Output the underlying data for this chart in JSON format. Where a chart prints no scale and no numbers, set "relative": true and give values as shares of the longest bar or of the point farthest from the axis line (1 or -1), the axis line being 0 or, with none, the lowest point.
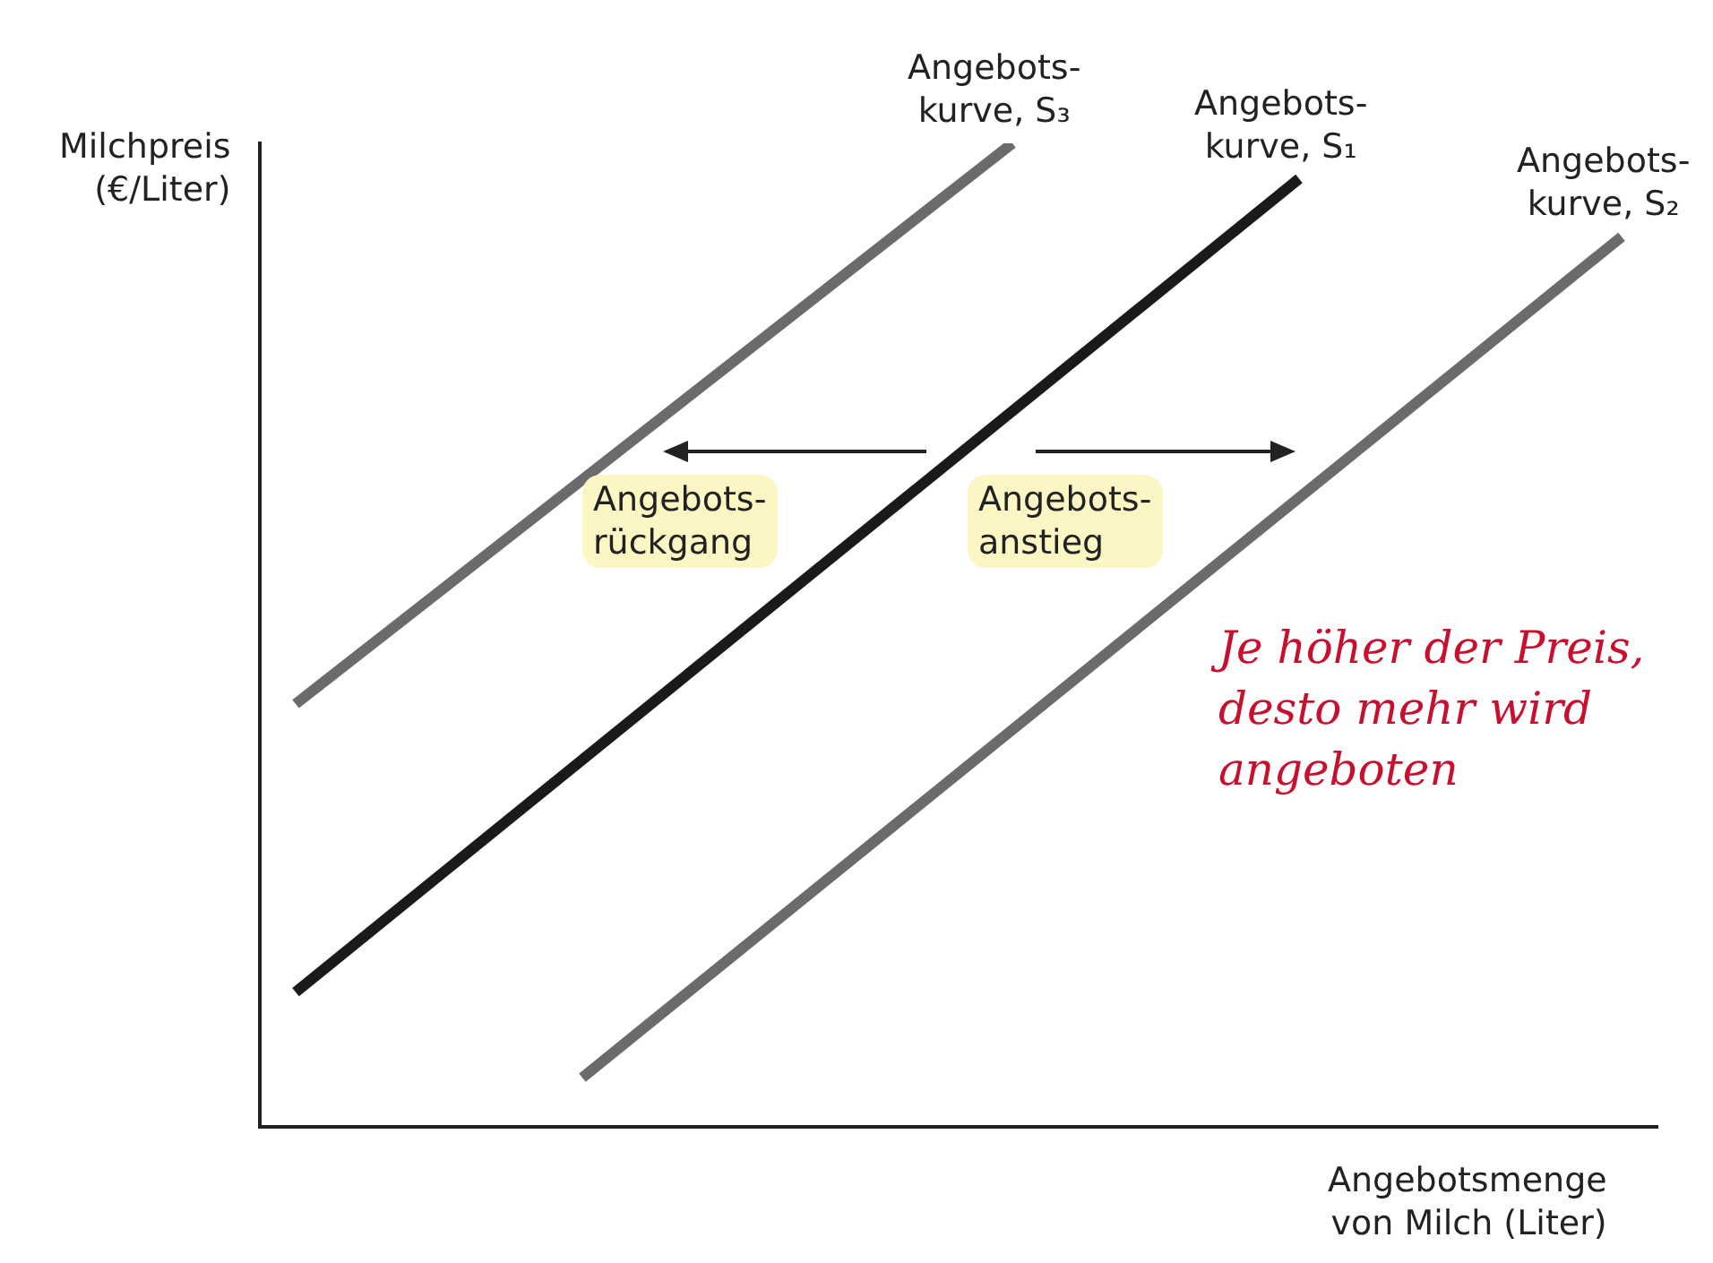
{
  "chart_data": {
    "type": "line",
    "relative": true,
    "ylabel": "Milchpreis\n(€/Liter)",
    "xlabel": "Angebotsmenge\nvon Milch (Liter)",
    "categories": [
      null,
      null,
      null,
      null,
      null,
      null,
      null,
      null,
      null,
      null,
      null,
      null,
      null,
      null,
      null,
      null,
      null,
      null,
      null,
      null,
      null,
      null,
      null,
      null,
      null,
      null,
      null,
      null,
      null,
      null,
      null,
      null,
      null,
      null,
      null,
      null,
      null,
      null,
      null,
      null
    ],
    "series": [
      {
        "name": "Angebots-\nkurve, S₃",
        "color": "#6b6b6b",
        "values": [
          null,
          0.43,
          null,
          null,
          null,
          null,
          null,
          null,
          null,
          null,
          null,
          null,
          null,
          null,
          null,
          null,
          null,
          null,
          null,
          null,
          null,
          1,
          null,
          null,
          null,
          null,
          null,
          null,
          null,
          null,
          null,
          null,
          null,
          null,
          null,
          null,
          null,
          null,
          null,
          null
        ]
      },
      {
        "name": "Angebots-\nkurve, S₁",
        "color": "#1a1a1a",
        "values": [
          null,
          0.137,
          null,
          null,
          null,
          null,
          null,
          null,
          null,
          null,
          null,
          null,
          null,
          null,
          null,
          null,
          null,
          null,
          null,
          null,
          null,
          null,
          null,
          null,
          null,
          null,
          null,
          null,
          null,
          0.964,
          null,
          null,
          null,
          null,
          null,
          null,
          null,
          null,
          null,
          null
        ]
      },
      {
        "name": "Angebots-\nkurve, S₂",
        "color": "#6b6b6b",
        "values": [
          null,
          null,
          null,
          null,
          null,
          null,
          null,
          null,
          null,
          0.05,
          null,
          null,
          null,
          null,
          null,
          null,
          null,
          null,
          null,
          null,
          null,
          null,
          null,
          null,
          null,
          null,
          null,
          null,
          null,
          null,
          null,
          null,
          null,
          null,
          null,
          null,
          null,
          null,
          0.905,
          null
        ]
      }
    ],
    "annotations": [
      "Angebots-\nrückgang",
      "Angebots-\nanstieg",
      "Je höher der Preis,\ndesto mehr wird\nangeboten"
    ],
    "legend": false,
    "grid": false,
    "marker": "none",
    "line_style": "solid"
  }
}
